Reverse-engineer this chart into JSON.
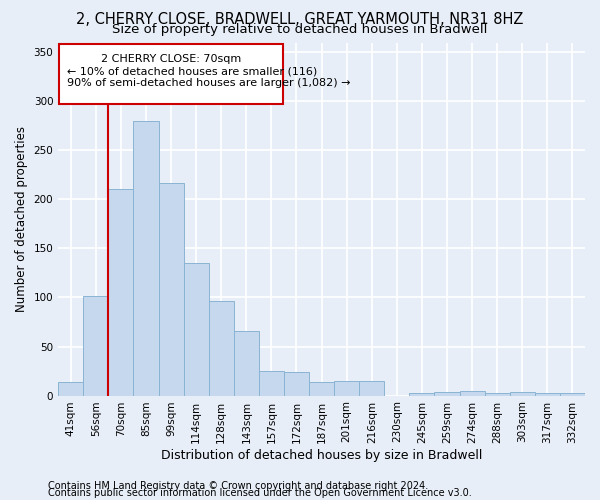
{
  "title": "2, CHERRY CLOSE, BRADWELL, GREAT YARMOUTH, NR31 8HZ",
  "subtitle": "Size of property relative to detached houses in Bradwell",
  "xlabel": "Distribution of detached houses by size in Bradwell",
  "ylabel": "Number of detached properties",
  "bar_color": "#c5d8ee",
  "bar_edge_color": "#8ab4d4",
  "categories": [
    "41sqm",
    "56sqm",
    "70sqm",
    "85sqm",
    "99sqm",
    "114sqm",
    "128sqm",
    "143sqm",
    "157sqm",
    "172sqm",
    "187sqm",
    "201sqm",
    "216sqm",
    "230sqm",
    "245sqm",
    "259sqm",
    "274sqm",
    "288sqm",
    "303sqm",
    "317sqm",
    "332sqm"
  ],
  "values": [
    14,
    102,
    211,
    280,
    217,
    135,
    96,
    66,
    25,
    24,
    14,
    15,
    15,
    0,
    3,
    4,
    5,
    3,
    4,
    3,
    3
  ],
  "ylim": [
    0,
    360
  ],
  "yticks": [
    0,
    50,
    100,
    150,
    200,
    250,
    300,
    350
  ],
  "vline_x": 2.0,
  "vline_color": "#cc0000",
  "ann_line1": "2 CHERRY CLOSE: 70sqm",
  "ann_line2": "← 10% of detached houses are smaller (116)",
  "ann_line3": "90% of semi-detached houses are larger (1,082) →",
  "annotation_box_color": "#cc0000",
  "annotation_box_fill": "#ffffff",
  "footer_line1": "Contains HM Land Registry data © Crown copyright and database right 2024.",
  "footer_line2": "Contains public sector information licensed under the Open Government Licence v3.0.",
  "background_color": "#e8eef8",
  "grid_color": "#ffffff",
  "title_fontsize": 10.5,
  "subtitle_fontsize": 9.5,
  "xlabel_fontsize": 9,
  "ylabel_fontsize": 8.5,
  "tick_fontsize": 7.5,
  "ann_fontsize": 8,
  "footer_fontsize": 7
}
